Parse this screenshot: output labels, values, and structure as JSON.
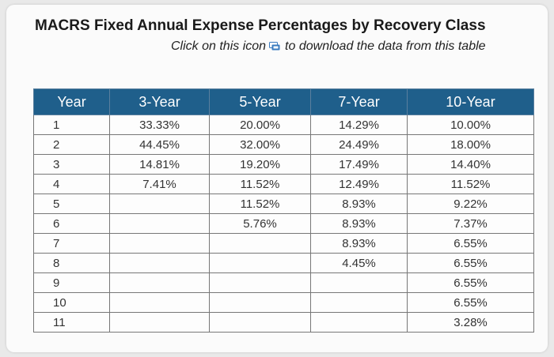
{
  "title": "MACRS Fixed Annual Expense Percentages by Recovery Class",
  "subtitle": {
    "before_icon": "Click on this icon",
    "icon": "download-icon",
    "after_icon": "to download the data from this table"
  },
  "colors": {
    "header_bg": "#1f5f8b",
    "header_text": "#ffffff",
    "icon_blue": "#3a7bbf"
  },
  "table": {
    "headers": [
      "Year",
      "3-Year",
      "5-Year",
      "7-Year",
      "10-Year"
    ],
    "rows": [
      [
        "1",
        "33.33%",
        "20.00%",
        "14.29%",
        "10.00%"
      ],
      [
        "2",
        "44.45%",
        "32.00%",
        "24.49%",
        "18.00%"
      ],
      [
        "3",
        "14.81%",
        "19.20%",
        "17.49%",
        "14.40%"
      ],
      [
        "4",
        "7.41%",
        "11.52%",
        "12.49%",
        "11.52%"
      ],
      [
        "5",
        "",
        "11.52%",
        "8.93%",
        "9.22%"
      ],
      [
        "6",
        "",
        "5.76%",
        "8.93%",
        "7.37%"
      ],
      [
        "7",
        "",
        "",
        "8.93%",
        "6.55%"
      ],
      [
        "8",
        "",
        "",
        "4.45%",
        "6.55%"
      ],
      [
        "9",
        "",
        "",
        "",
        "6.55%"
      ],
      [
        "10",
        "",
        "",
        "",
        "6.55%"
      ],
      [
        "11",
        "",
        "",
        "",
        "3.28%"
      ]
    ]
  }
}
